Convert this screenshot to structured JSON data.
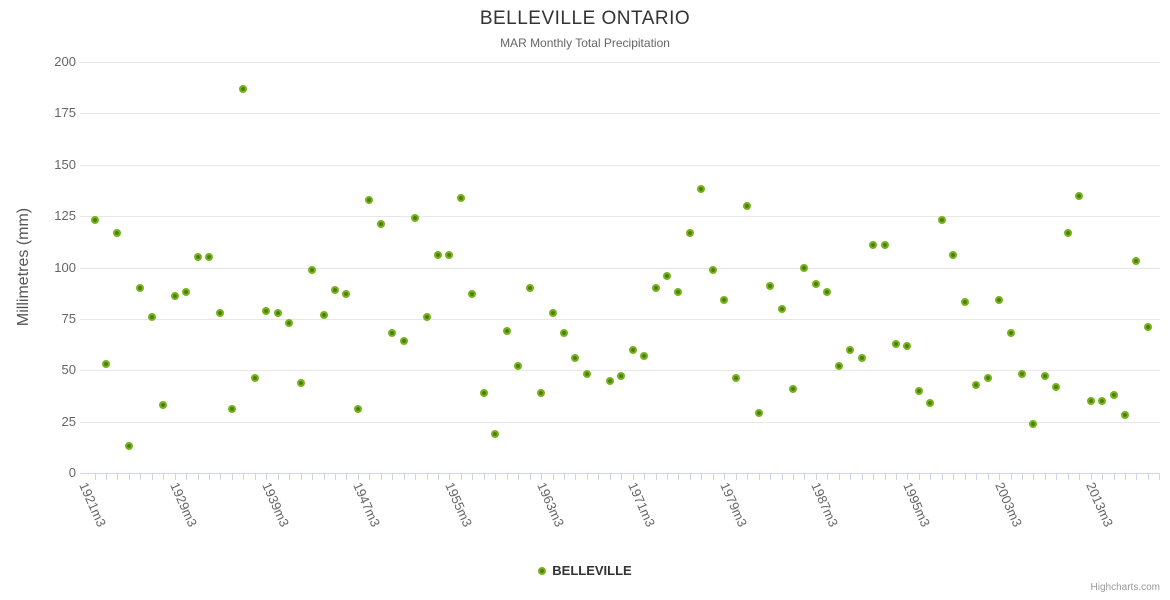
{
  "title": "BELLEVILLE ONTARIO",
  "subtitle": "MAR Monthly Total Precipitation",
  "legend": {
    "label": "BELLEVILLE"
  },
  "credits": "Highcharts.com",
  "colors": {
    "point_outer": "#77b31a",
    "point_inner": "#4d7d0e",
    "grid": "#e6e6e6",
    "axis": "#ccd6eb",
    "title_text": "#333333",
    "subtitle_text": "#666666",
    "axis_label_text": "#666666",
    "credits_text": "#999999"
  },
  "chart_data": {
    "type": "scatter",
    "title": "BELLEVILLE ONTARIO",
    "subtitle": "MAR Monthly Total Precipitation",
    "ylabel": "Millimetres (mm)",
    "xlabel": "",
    "ylim": [
      0,
      200
    ],
    "y_ticks": [
      0,
      25,
      50,
      75,
      100,
      125,
      150,
      175,
      200
    ],
    "grid": "horizontal-only",
    "legend_position": "bottom-center",
    "x_axis_type": "category-index",
    "x_index_count": 94,
    "x_tick_labels": [
      {
        "index": 0,
        "label": "1921m3"
      },
      {
        "index": 8,
        "label": "1929m3"
      },
      {
        "index": 16,
        "label": "1939m3"
      },
      {
        "index": 24,
        "label": "1947m3"
      },
      {
        "index": 32,
        "label": "1955m3"
      },
      {
        "index": 40,
        "label": "1963m3"
      },
      {
        "index": 48,
        "label": "1971m3"
      },
      {
        "index": 56,
        "label": "1979m3"
      },
      {
        "index": 64,
        "label": "1987m3"
      },
      {
        "index": 72,
        "label": "1995m3"
      },
      {
        "index": 80,
        "label": "2003m3"
      },
      {
        "index": 88,
        "label": "2013m3"
      }
    ],
    "series": [
      {
        "name": "BELLEVILLE",
        "points": [
          [
            0,
            123
          ],
          [
            1,
            53
          ],
          [
            2,
            117
          ],
          [
            3,
            13
          ],
          [
            4,
            90
          ],
          [
            5,
            76
          ],
          [
            6,
            33
          ],
          [
            7,
            86
          ],
          [
            8,
            88
          ],
          [
            9,
            105
          ],
          [
            10,
            105
          ],
          [
            11,
            78
          ],
          [
            12,
            31
          ],
          [
            13,
            187
          ],
          [
            14,
            46
          ],
          [
            15,
            79
          ],
          [
            16,
            78
          ],
          [
            17,
            73
          ],
          [
            18,
            44
          ],
          [
            19,
            99
          ],
          [
            20,
            77
          ],
          [
            21,
            89
          ],
          [
            22,
            87
          ],
          [
            23,
            31
          ],
          [
            24,
            133
          ],
          [
            25,
            121
          ],
          [
            26,
            68
          ],
          [
            27,
            64
          ],
          [
            28,
            124
          ],
          [
            29,
            76
          ],
          [
            30,
            106
          ],
          [
            31,
            106
          ],
          [
            32,
            134
          ],
          [
            33,
            87
          ],
          [
            34,
            39
          ],
          [
            35,
            19
          ],
          [
            36,
            69
          ],
          [
            37,
            52
          ],
          [
            38,
            90
          ],
          [
            39,
            39
          ],
          [
            40,
            78
          ],
          [
            41,
            68
          ],
          [
            42,
            56
          ],
          [
            43,
            48
          ],
          [
            45,
            45
          ],
          [
            46,
            47
          ],
          [
            47,
            60
          ],
          [
            48,
            57
          ],
          [
            49,
            90
          ],
          [
            50,
            96
          ],
          [
            51,
            88
          ],
          [
            52,
            117
          ],
          [
            53,
            138
          ],
          [
            54,
            99
          ],
          [
            55,
            84
          ],
          [
            56,
            46
          ],
          [
            57,
            130
          ],
          [
            58,
            29
          ],
          [
            59,
            91
          ],
          [
            60,
            80
          ],
          [
            61,
            41
          ],
          [
            62,
            100
          ],
          [
            63,
            92
          ],
          [
            64,
            88
          ],
          [
            65,
            52
          ],
          [
            66,
            60
          ],
          [
            67,
            56
          ],
          [
            68,
            111
          ],
          [
            69,
            111
          ],
          [
            70,
            63
          ],
          [
            71,
            62
          ],
          [
            72,
            40
          ],
          [
            73,
            34
          ],
          [
            74,
            123
          ],
          [
            75,
            106
          ],
          [
            76,
            83
          ],
          [
            77,
            43
          ],
          [
            78,
            46
          ],
          [
            79,
            84
          ],
          [
            80,
            68
          ],
          [
            81,
            48
          ],
          [
            82,
            24
          ],
          [
            83,
            47
          ],
          [
            84,
            42
          ],
          [
            85,
            117
          ],
          [
            86,
            135
          ],
          [
            87,
            35
          ],
          [
            88,
            35
          ],
          [
            89,
            38
          ],
          [
            90,
            28
          ],
          [
            91,
            103
          ],
          [
            92,
            71
          ]
        ]
      }
    ]
  }
}
